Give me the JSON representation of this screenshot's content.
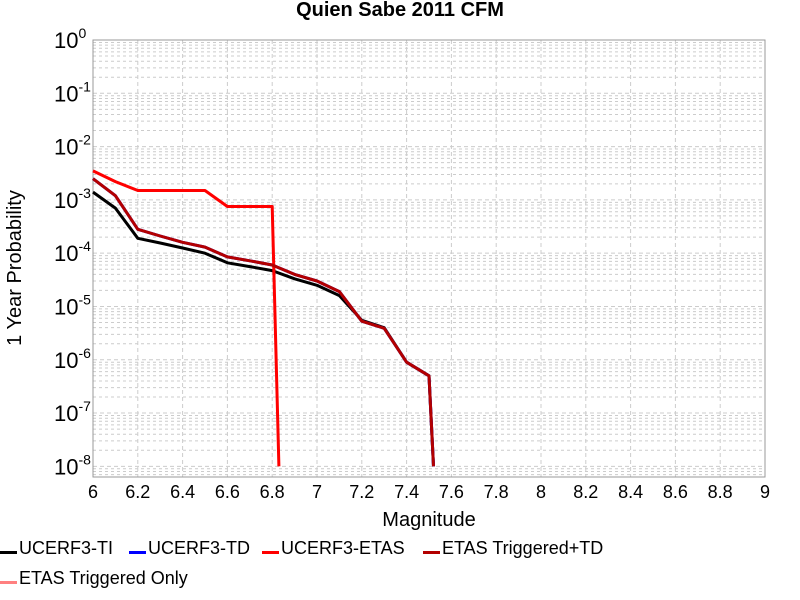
{
  "chart_data": {
    "type": "line",
    "title": "Quien Sabe 2011 CFM",
    "xlabel": "Magnitude",
    "ylabel": "1 Year Probability",
    "xlim": [
      6,
      9
    ],
    "ylim_log10": [
      -8.2,
      0
    ],
    "yscale": "log",
    "grid": true,
    "x_tick_labels": [
      "6",
      "6.2",
      "6.4",
      "6.6",
      "6.8",
      "7",
      "7.2",
      "7.4",
      "7.6",
      "7.8",
      "8",
      "8.2",
      "8.4",
      "8.6",
      "8.8",
      "9"
    ],
    "y_tick_labels": [
      {
        "base": "10",
        "exp": "0"
      },
      {
        "base": "10",
        "exp": "-1"
      },
      {
        "base": "10",
        "exp": "-2"
      },
      {
        "base": "10",
        "exp": "-3"
      },
      {
        "base": "10",
        "exp": "-4"
      },
      {
        "base": "10",
        "exp": "-5"
      },
      {
        "base": "10",
        "exp": "-6"
      },
      {
        "base": "10",
        "exp": "-7"
      },
      {
        "base": "10",
        "exp": "-8"
      }
    ],
    "legend_position": "bottom",
    "series": [
      {
        "name": "UCERF3-TI",
        "color": "#000000",
        "x": [
          6.0,
          6.1,
          6.2,
          6.3,
          6.4,
          6.5,
          6.6,
          6.7,
          6.8,
          6.9,
          7.0,
          7.1,
          7.2,
          7.3,
          7.4,
          7.5,
          7.52
        ],
        "y": [
          0.0014,
          0.0007,
          0.00019,
          0.000155,
          0.000125,
          0.0001,
          6.6e-05,
          5.6e-05,
          4.7e-05,
          3.3e-05,
          2.5e-05,
          1.6e-05,
          5.5e-06,
          4e-06,
          9e-07,
          5e-07,
          1e-08
        ]
      },
      {
        "name": "UCERF3-TD",
        "color": "#0000ff",
        "x": [
          6.0,
          6.1,
          6.2,
          6.3,
          6.4,
          6.5,
          6.6,
          6.7,
          6.8,
          6.9,
          7.0,
          7.1,
          7.2,
          7.3,
          7.4,
          7.5,
          7.52
        ],
        "y": [
          0.0025,
          0.0012,
          0.00028,
          0.00021,
          0.00016,
          0.00013,
          8.5e-05,
          7.2e-05,
          6e-05,
          4e-05,
          3e-05,
          1.9e-05,
          5.3e-06,
          3.9e-06,
          9e-07,
          5e-07,
          1e-08
        ]
      },
      {
        "name": "UCERF3-ETAS",
        "color": "#ff0000",
        "x": [
          6.0,
          6.1,
          6.2,
          6.3,
          6.4,
          6.5,
          6.6,
          6.7,
          6.8,
          6.83
        ],
        "y": [
          0.0035,
          0.0022,
          0.0015,
          0.0015,
          0.0015,
          0.0015,
          0.00075,
          0.00075,
          0.00075,
          1e-08
        ]
      },
      {
        "name": "ETAS Triggered+TD",
        "color": "#b30000",
        "x": [
          6.0,
          6.1,
          6.2,
          6.3,
          6.4,
          6.5,
          6.6,
          6.7,
          6.8,
          6.9,
          7.0,
          7.1,
          7.2,
          7.3,
          7.4,
          7.5,
          7.52
        ],
        "y": [
          0.0025,
          0.0012,
          0.00028,
          0.00021,
          0.00016,
          0.00013,
          8.5e-05,
          7.2e-05,
          6e-05,
          4e-05,
          3e-05,
          1.9e-05,
          5.3e-06,
          3.9e-06,
          9e-07,
          5e-07,
          1e-08
        ]
      },
      {
        "name": "ETAS Triggered Only",
        "color": "#ff8080",
        "x": [],
        "y": []
      }
    ]
  }
}
